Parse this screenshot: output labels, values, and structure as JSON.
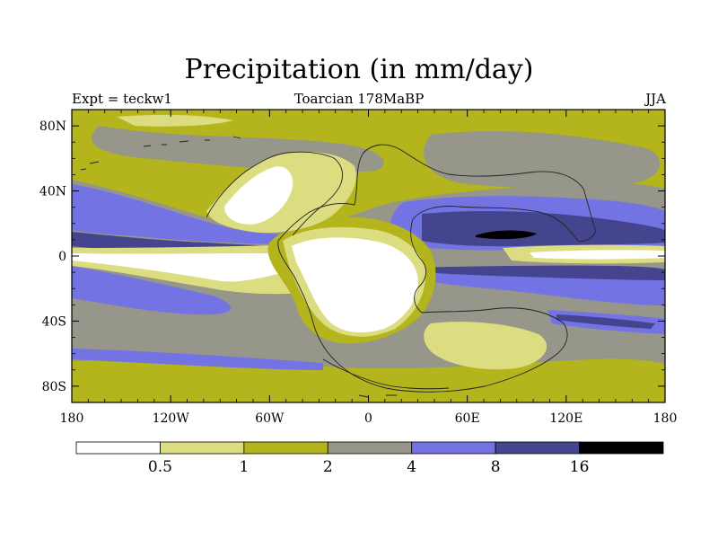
{
  "chart_data": {
    "type": "contour-map",
    "title": "Precipitation (in mm/day)",
    "subtitle": "Toarcian 178MaBP",
    "left_label": "Expt = teckw1",
    "right_label": "JJA",
    "x_axis": {
      "range": [
        -180,
        180
      ],
      "ticks": [
        -180,
        -120,
        -60,
        0,
        60,
        120,
        180
      ],
      "tick_labels": [
        "180",
        "120W",
        "60W",
        "0",
        "60E",
        "120E",
        "180"
      ]
    },
    "y_axis": {
      "range": [
        -90,
        90
      ],
      "ticks": [
        80,
        40,
        0,
        -40,
        -80
      ],
      "tick_labels": [
        "80N",
        "40N",
        "0",
        "40S",
        "80S"
      ]
    },
    "colorbar": {
      "levels": [
        0.5,
        1,
        2,
        4,
        8,
        16
      ],
      "level_labels": [
        "0.5",
        "1",
        "2",
        "4",
        "8",
        "16"
      ],
      "colors": [
        "#ffffff",
        "#dcdc80",
        "#b4b41c",
        "#96968a",
        "#7373e4",
        "#45458f",
        "#000000"
      ]
    }
  }
}
